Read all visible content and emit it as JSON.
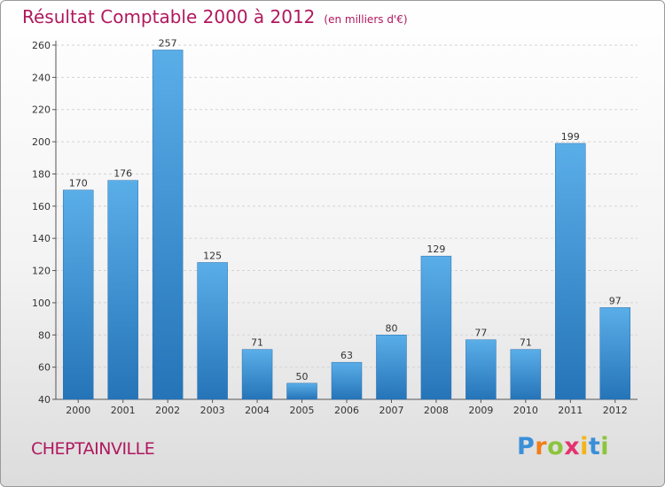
{
  "chart_data": {
    "type": "bar",
    "title": "Résultat Comptable 2000 à 2012",
    "subtitle": "(en milliers d'€)",
    "categories": [
      "2000",
      "2001",
      "2002",
      "2003",
      "2004",
      "2005",
      "2006",
      "2007",
      "2008",
      "2009",
      "2010",
      "2011",
      "2012"
    ],
    "values": [
      170,
      176,
      257,
      125,
      71,
      50,
      63,
      80,
      129,
      77,
      71,
      199,
      97
    ],
    "ylim": [
      40,
      260
    ],
    "yticks": [
      40,
      60,
      80,
      100,
      120,
      140,
      160,
      180,
      200,
      220,
      240,
      260
    ],
    "grid": true,
    "bar_color": "#3e94d6"
  },
  "footer": {
    "town": "CHEPTAINVILLE",
    "logo_letters": [
      {
        "ch": "P",
        "color": "#3a8fd8"
      },
      {
        "ch": "r",
        "color": "#f07e18"
      },
      {
        "ch": "o",
        "color": "#8cc43c"
      },
      {
        "ch": "x",
        "color": "#e5336d"
      },
      {
        "ch": "i",
        "color": "#f4b418"
      },
      {
        "ch": "t",
        "color": "#3a8fd8"
      },
      {
        "ch": "i",
        "color": "#8cc43c"
      }
    ]
  }
}
